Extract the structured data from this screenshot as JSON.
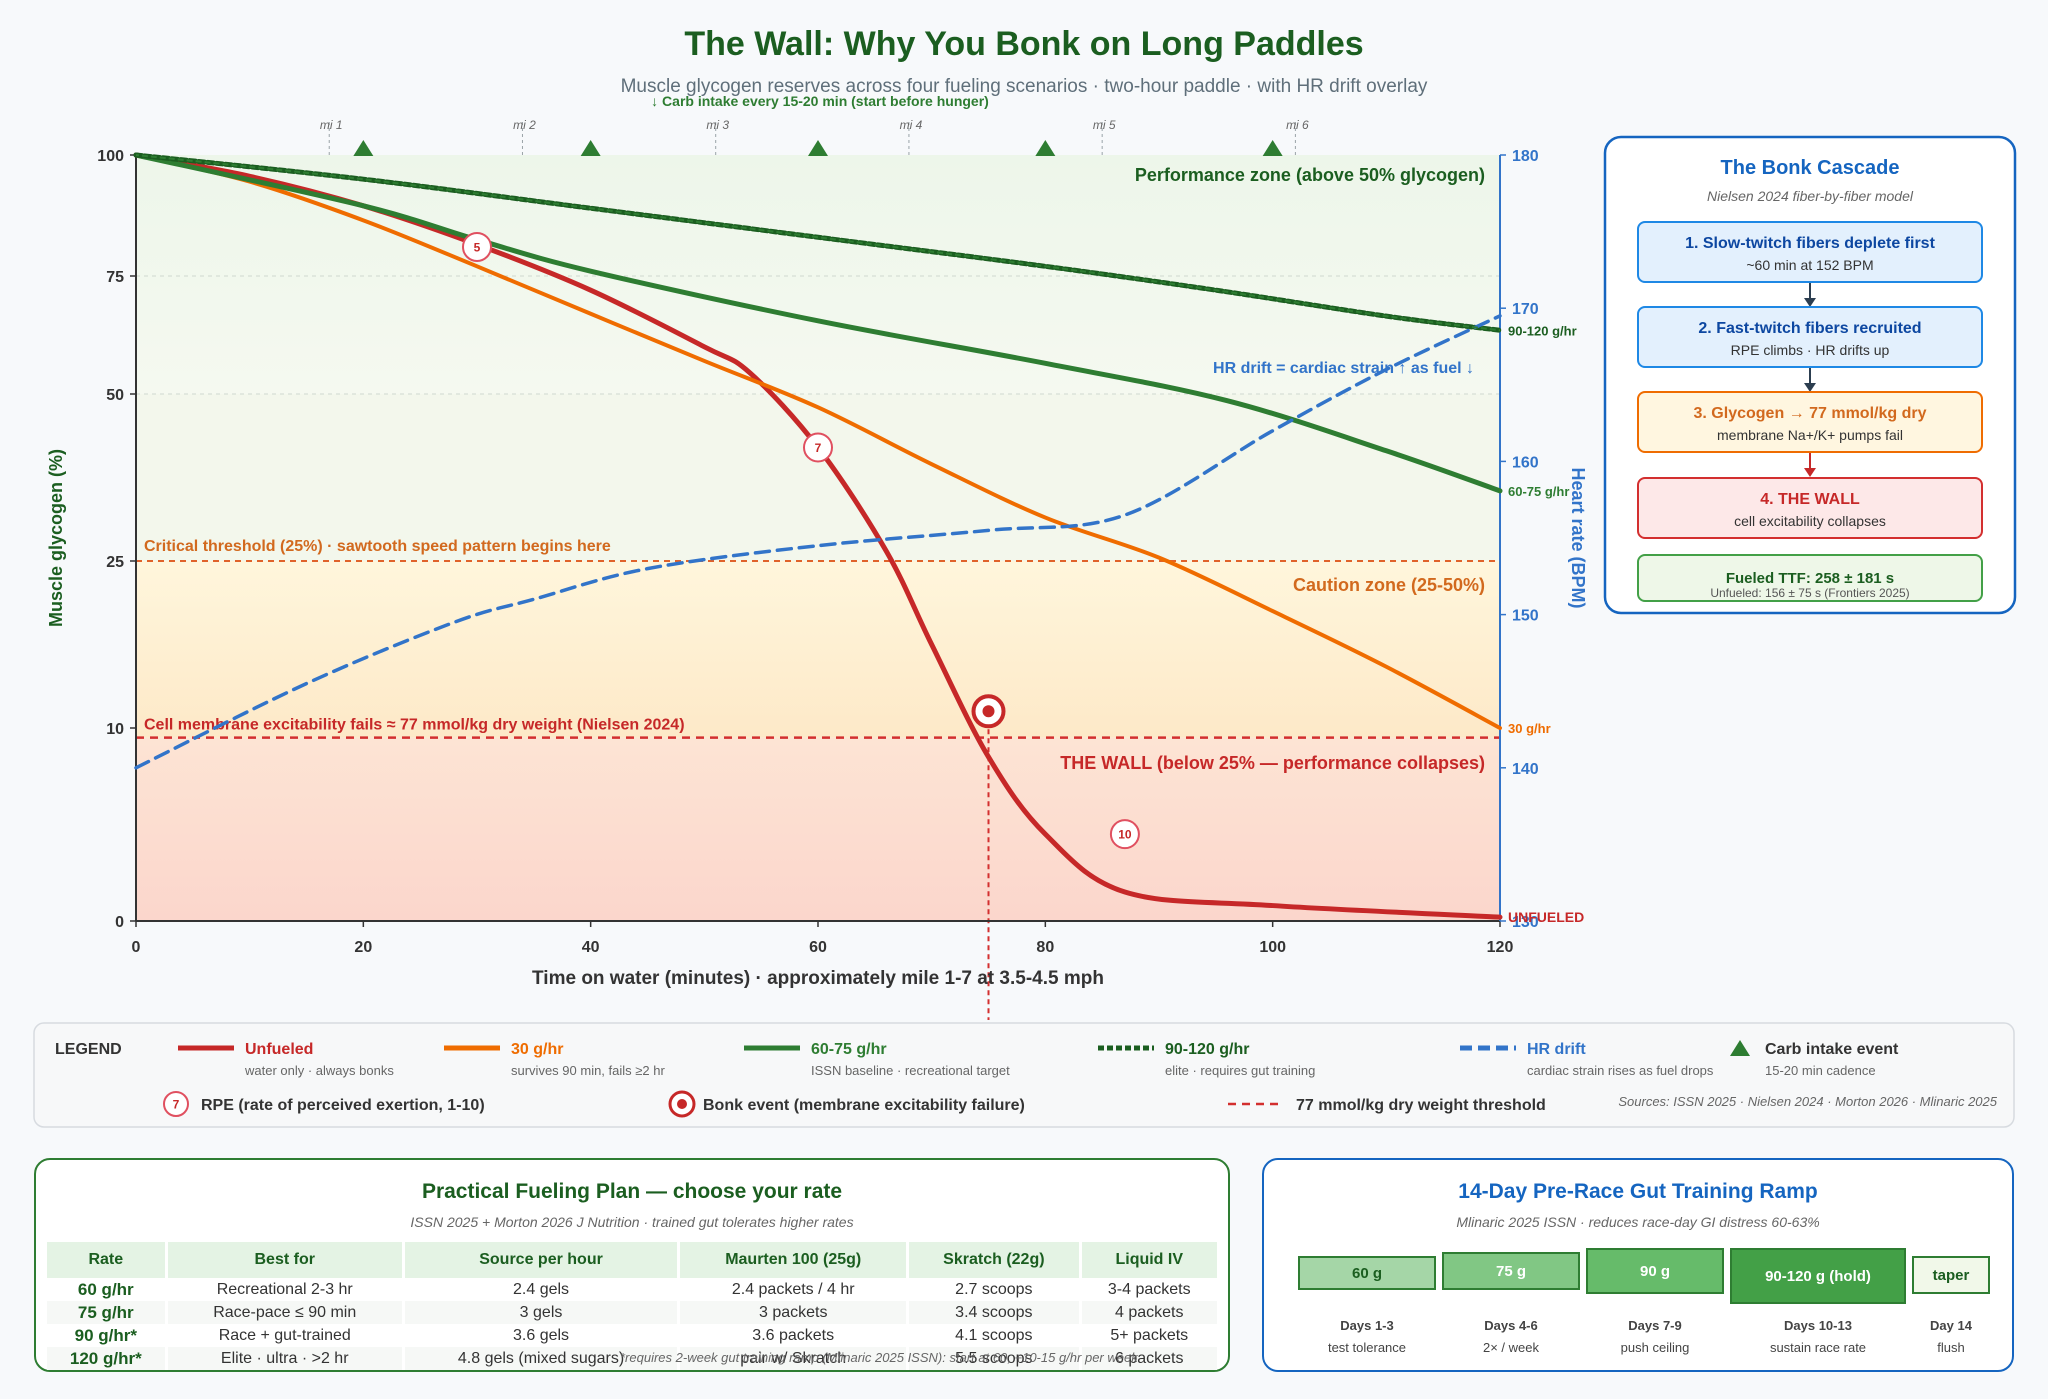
{
  "header": {
    "title": "The Wall: Why You Bonk on Long Paddles",
    "subtitle": "Muscle glycogen reserves across four fueling scenarios · two-hour paddle · with HR drift overlay",
    "carb_note": "↓ Carb intake every 15-20 min (start before hunger)"
  },
  "colors": {
    "unfueled": "#c62828",
    "fuel30": "#ef6c00",
    "fuel60": "#2e7d32",
    "fuel90": "#1b5e20",
    "hr": "#3274c9",
    "title": "#1b5e20",
    "blue": "#1565c0"
  },
  "chart_data": {
    "type": "line",
    "xlabel": "Time on water (minutes) · approximately mile 1-7 at 3.5-4.5 mph",
    "ylabel": "Muscle glycogen (%)",
    "y2label": "Heart rate (BPM)",
    "xlim": [
      0,
      120
    ],
    "x_ticks": [
      0,
      20,
      40,
      60,
      80,
      100,
      120
    ],
    "y_ticks": [
      0,
      10,
      25,
      50,
      75,
      100
    ],
    "y2_ticks": [
      130,
      140,
      150,
      160,
      170,
      180
    ],
    "y2lim": [
      130,
      180
    ],
    "grid": true,
    "mile_markers": [
      {
        "label": "mi 1",
        "x": 17
      },
      {
        "label": "mi 2",
        "x": 34
      },
      {
        "label": "mi 3",
        "x": 51
      },
      {
        "label": "mi 4",
        "x": 68
      },
      {
        "label": "mi 5",
        "x": 85
      },
      {
        "label": "mi 6",
        "x": 102
      }
    ],
    "carb_events_x": [
      20,
      40,
      60,
      80,
      100
    ],
    "zones": {
      "performance": "Performance zone (above 50% glycogen)",
      "caution": "Caution zone (25-50%)",
      "wall": "THE WALL (below 25% — performance collapses)"
    },
    "thresholds": {
      "critical_label": "Critical threshold (25%) · sawtooth speed pattern begins here",
      "critical_y": 25,
      "membrane_label": "Cell membrane excitability fails ≈ 77 mmol/kg dry weight (Nielsen 2024)",
      "membrane_y": 9.5
    },
    "series": [
      {
        "name": "Unfueled",
        "end_label": "UNFUELED",
        "x": [
          0,
          10,
          20,
          30,
          40,
          50,
          54,
          60,
          66,
          70,
          75,
          80,
          87,
          100,
          120
        ],
        "y": [
          100,
          95.6,
          89.5,
          81.5,
          72,
          60,
          54.5,
          42,
          26.5,
          17.5,
          8.5,
          4.5,
          1.5,
          0.8,
          0.2
        ]
      },
      {
        "name": "30 g/hr",
        "end_label": "30 g/hr",
        "x": [
          0,
          10,
          20,
          30,
          40,
          50,
          60,
          70,
          80,
          90,
          100,
          110,
          120
        ],
        "y": [
          100,
          94.5,
          86.5,
          77,
          67,
          57,
          48,
          39.5,
          31.5,
          25.5,
          20.5,
          15.5,
          10
        ]
      },
      {
        "name": "60-75 g/hr",
        "end_label": "60-75 g/hr",
        "x": [
          0,
          20,
          30,
          40,
          60,
          80,
          96,
          110,
          120
        ],
        "y": [
          100,
          89.5,
          82.5,
          76,
          65.5,
          56.5,
          49,
          41.5,
          35.5
        ]
      },
      {
        "name": "90-120 g/hr",
        "end_label": "90-120 g/hr",
        "x": [
          0,
          20,
          40,
          60,
          80,
          95,
          110,
          120
        ],
        "y": [
          100,
          95,
          89,
          83,
          77,
          72,
          66.5,
          63.5
        ]
      },
      {
        "name": "HR drift",
        "axis": "y2",
        "x": [
          0,
          15,
          28,
          35,
          45,
          60,
          75,
          87,
          100,
          110,
          120
        ],
        "y": [
          140,
          145.5,
          149.5,
          151,
          153,
          154.5,
          155.5,
          156.5,
          162,
          166,
          169.5
        ]
      }
    ],
    "hr_note": "HR drift = cardiac strain ↑ as fuel ↓",
    "rpe_markers": [
      {
        "label": "5",
        "x": 30,
        "y": 81
      },
      {
        "label": "7",
        "x": 60,
        "y": 42
      },
      {
        "label": "10",
        "x": 87,
        "y": 4.5
      }
    ],
    "bonk_event": {
      "x": 75,
      "y": 11.5
    }
  },
  "legend": {
    "title": "LEGEND",
    "items": [
      {
        "label": "Unfueled",
        "desc": "water only · always bonks"
      },
      {
        "label": "30 g/hr",
        "desc": "survives 90 min, fails ≥2 hr"
      },
      {
        "label": "60-75 g/hr",
        "desc": "ISSN baseline · recreational target"
      },
      {
        "label": "90-120 g/hr",
        "desc": "elite · requires gut training"
      },
      {
        "label": "HR drift",
        "desc": "cardiac strain rises as fuel drops"
      },
      {
        "label": "Carb intake event",
        "desc": "15-20 min cadence"
      }
    ],
    "rpe_badge": "7",
    "rpe_label": "RPE (rate of perceived exertion, 1-10)",
    "bonk_label": "Bonk event (membrane excitability failure)",
    "threshold_label": "77 mmol/kg dry weight threshold",
    "sources": "Sources: ISSN 2025 · Nielsen 2024 · Morton 2026 · Mlinaric 2025"
  },
  "cascade": {
    "title": "The Bonk Cascade",
    "subtitle": "Nielsen 2024 fiber-by-fiber model",
    "steps": [
      {
        "title": "1. Slow-twitch fibers deplete first",
        "desc": "~60 min at 152 BPM"
      },
      {
        "title": "2. Fast-twitch fibers recruited",
        "desc": "RPE climbs · HR drifts up"
      },
      {
        "title": "3. Glycogen → 77 mmol/kg dry",
        "desc": "membrane Na+/K+ pumps fail"
      },
      {
        "title": "4. THE WALL",
        "desc": "cell excitability collapses"
      }
    ],
    "ttf_title": "Fueled TTF: 258 ± 181 s",
    "ttf_sub": "Unfueled: 156 ± 75 s (Frontiers 2025)"
  },
  "plan": {
    "title": "Practical Fueling Plan — choose your rate",
    "subtitle": "ISSN 2025 + Morton 2026 J Nutrition · trained gut tolerates higher rates",
    "headers": [
      "Rate",
      "Best for",
      "Source per hour",
      "Maurten 100 (25g)",
      "Skratch (22g)",
      "Liquid IV"
    ],
    "rows": [
      [
        "60 g/hr",
        "Recreational 2-3 hr",
        "2.4 gels",
        "2.4 packets / 4 hr",
        "2.7 scoops",
        "3-4 packets"
      ],
      [
        "75 g/hr",
        "Race-pace ≤ 90 min",
        "3 gels",
        "3 packets",
        "3.4 scoops",
        "4 packets"
      ],
      [
        "90 g/hr*",
        "Race + gut-trained",
        "3.6 gels",
        "3.6 packets",
        "4.1 scoops",
        "5+ packets"
      ],
      [
        "120 g/hr*",
        "Elite · ultra · >2 hr",
        "4.8 gels (mixed sugars)",
        "pair w/ Skratch",
        "5.5 scoops",
        "6 packets"
      ]
    ],
    "footnote": "*requires 2-week gut training ramp (Mlinaric 2025 ISSN): start at 60, +10-15 g/hr per week"
  },
  "ramp": {
    "title": "14-Day Pre-Race Gut Training Ramp",
    "subtitle": "Mlinaric 2025 ISSN · reduces race-day GI distress 60-63%",
    "steps": [
      {
        "bar": "60 g",
        "days": "Days 1-3",
        "note": "test tolerance"
      },
      {
        "bar": "75 g",
        "days": "Days 4-6",
        "note": "2× / week"
      },
      {
        "bar": "90 g",
        "days": "Days 7-9",
        "note": "push ceiling"
      },
      {
        "bar": "90-120 g (hold)",
        "days": "Days 10-13",
        "note": "sustain race rate"
      },
      {
        "bar": "taper",
        "days": "Day 14",
        "note": "flush"
      }
    ]
  }
}
